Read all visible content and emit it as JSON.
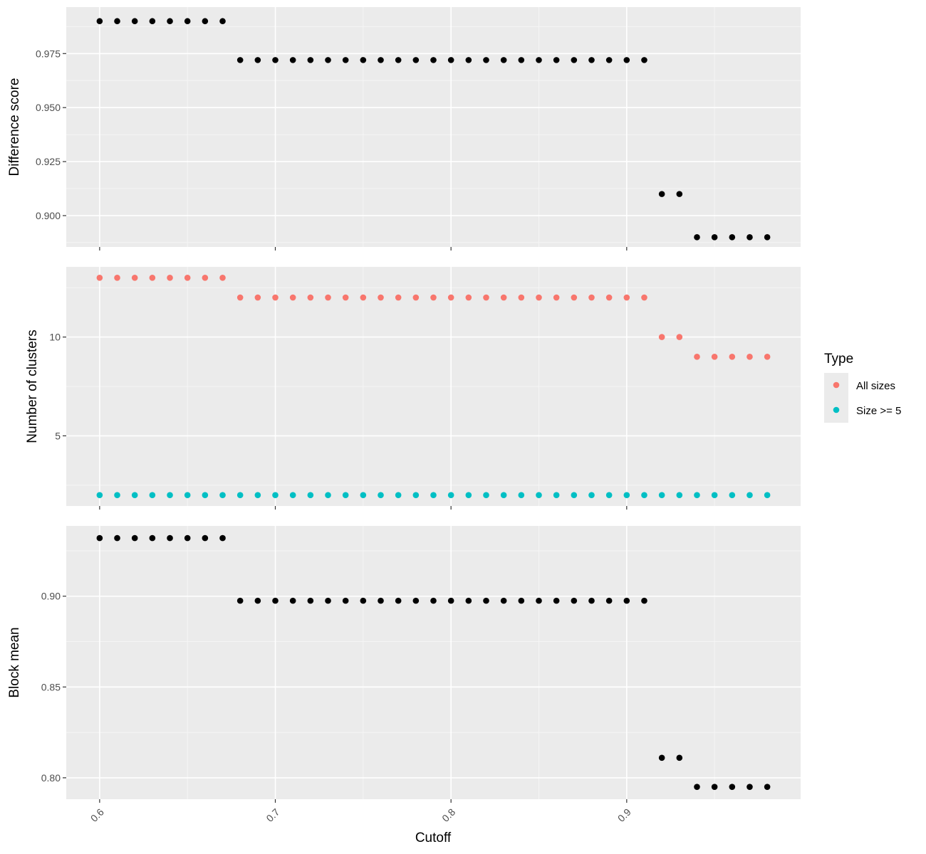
{
  "colors": {
    "panel_bg": "#EBEBEB",
    "grid_major": "#FFFFFF",
    "grid_minor": "#F5F5F5",
    "tick": "#333333",
    "black_points": "#000000",
    "all_sizes": "#F8766D",
    "size_ge5": "#00BFC4"
  },
  "xlabel": "Cutoff",
  "legend": {
    "title": "Type",
    "items": [
      {
        "label": "All sizes",
        "color": "#F8766D"
      },
      {
        "label": "Size >= 5",
        "color": "#00BFC4"
      }
    ]
  },
  "chart_data": [
    {
      "type": "scatter",
      "ylabel": "Difference score",
      "xlim": [
        0.581,
        0.999
      ],
      "ylim": [
        0.8855,
        0.9965
      ],
      "xticks": [
        0.6,
        0.7,
        0.8,
        0.9
      ],
      "xtick_labels": [
        "0.6",
        "0.7",
        "0.8",
        "0.9"
      ],
      "yticks": [
        0.9,
        0.925,
        0.95,
        0.975
      ],
      "ytick_labels": [
        "0.900",
        "0.925",
        "0.950",
        "0.975"
      ],
      "show_xtick_labels": false,
      "grid": true,
      "series": [
        {
          "color": "#000000",
          "x": [
            0.6,
            0.61,
            0.62,
            0.63,
            0.64,
            0.65,
            0.66,
            0.67,
            0.68,
            0.69,
            0.7,
            0.71,
            0.72,
            0.73,
            0.74,
            0.75,
            0.76,
            0.77,
            0.78,
            0.79,
            0.8,
            0.81,
            0.82,
            0.83,
            0.84,
            0.85,
            0.86,
            0.87,
            0.88,
            0.89,
            0.9,
            0.91,
            0.92,
            0.93,
            0.94,
            0.95,
            0.96,
            0.97,
            0.98
          ],
          "y": [
            0.99,
            0.99,
            0.99,
            0.99,
            0.99,
            0.99,
            0.99,
            0.99,
            0.972,
            0.972,
            0.972,
            0.972,
            0.972,
            0.972,
            0.972,
            0.972,
            0.972,
            0.972,
            0.972,
            0.972,
            0.972,
            0.972,
            0.972,
            0.972,
            0.972,
            0.972,
            0.972,
            0.972,
            0.972,
            0.972,
            0.972,
            0.972,
            0.91,
            0.91,
            0.89,
            0.89,
            0.89,
            0.89,
            0.89
          ]
        }
      ]
    },
    {
      "type": "scatter",
      "ylabel": "Number of clusters",
      "xlim": [
        0.581,
        0.999
      ],
      "ylim": [
        1.45,
        13.55
      ],
      "xticks": [
        0.6,
        0.7,
        0.8,
        0.9
      ],
      "xtick_labels": [
        "0.6",
        "0.7",
        "0.8",
        "0.9"
      ],
      "yticks": [
        5,
        10
      ],
      "ytick_labels": [
        "5",
        "10"
      ],
      "show_xtick_labels": false,
      "grid": true,
      "series": [
        {
          "name": "All sizes",
          "color": "#F8766D",
          "x": [
            0.6,
            0.61,
            0.62,
            0.63,
            0.64,
            0.65,
            0.66,
            0.67,
            0.68,
            0.69,
            0.7,
            0.71,
            0.72,
            0.73,
            0.74,
            0.75,
            0.76,
            0.77,
            0.78,
            0.79,
            0.8,
            0.81,
            0.82,
            0.83,
            0.84,
            0.85,
            0.86,
            0.87,
            0.88,
            0.89,
            0.9,
            0.91,
            0.92,
            0.93,
            0.94,
            0.95,
            0.96,
            0.97,
            0.98
          ],
          "y": [
            13,
            13,
            13,
            13,
            13,
            13,
            13,
            13,
            12,
            12,
            12,
            12,
            12,
            12,
            12,
            12,
            12,
            12,
            12,
            12,
            12,
            12,
            12,
            12,
            12,
            12,
            12,
            12,
            12,
            12,
            12,
            12,
            10,
            10,
            9,
            9,
            9,
            9,
            9
          ]
        },
        {
          "name": "Size >= 5",
          "color": "#00BFC4",
          "x": [
            0.6,
            0.61,
            0.62,
            0.63,
            0.64,
            0.65,
            0.66,
            0.67,
            0.68,
            0.69,
            0.7,
            0.71,
            0.72,
            0.73,
            0.74,
            0.75,
            0.76,
            0.77,
            0.78,
            0.79,
            0.8,
            0.81,
            0.82,
            0.83,
            0.84,
            0.85,
            0.86,
            0.87,
            0.88,
            0.89,
            0.9,
            0.91,
            0.92,
            0.93,
            0.94,
            0.95,
            0.96,
            0.97,
            0.98
          ],
          "y": [
            2,
            2,
            2,
            2,
            2,
            2,
            2,
            2,
            2,
            2,
            2,
            2,
            2,
            2,
            2,
            2,
            2,
            2,
            2,
            2,
            2,
            2,
            2,
            2,
            2,
            2,
            2,
            2,
            2,
            2,
            2,
            2,
            2,
            2,
            2,
            2,
            2,
            2,
            2
          ]
        }
      ]
    },
    {
      "type": "scatter",
      "ylabel": "Block mean",
      "xlim": [
        0.581,
        0.999
      ],
      "ylim": [
        0.7882,
        0.9387
      ],
      "xticks": [
        0.6,
        0.7,
        0.8,
        0.9
      ],
      "xtick_labels": [
        "0.6",
        "0.7",
        "0.8",
        "0.9"
      ],
      "yticks": [
        0.8,
        0.85,
        0.9
      ],
      "ytick_labels": [
        "0.80",
        "0.85",
        "0.90"
      ],
      "show_xtick_labels": true,
      "grid": true,
      "series": [
        {
          "color": "#000000",
          "x": [
            0.6,
            0.61,
            0.62,
            0.63,
            0.64,
            0.65,
            0.66,
            0.67,
            0.68,
            0.69,
            0.7,
            0.71,
            0.72,
            0.73,
            0.74,
            0.75,
            0.76,
            0.77,
            0.78,
            0.79,
            0.8,
            0.81,
            0.82,
            0.83,
            0.84,
            0.85,
            0.86,
            0.87,
            0.88,
            0.89,
            0.9,
            0.91,
            0.92,
            0.93,
            0.94,
            0.95,
            0.96,
            0.97,
            0.98
          ],
          "y": [
            0.932,
            0.932,
            0.932,
            0.932,
            0.932,
            0.932,
            0.932,
            0.932,
            0.8975,
            0.8975,
            0.8975,
            0.8975,
            0.8975,
            0.8975,
            0.8975,
            0.8975,
            0.8975,
            0.8975,
            0.8975,
            0.8975,
            0.8975,
            0.8975,
            0.8975,
            0.8975,
            0.8975,
            0.8975,
            0.8975,
            0.8975,
            0.8975,
            0.8975,
            0.8975,
            0.8975,
            0.811,
            0.811,
            0.795,
            0.795,
            0.795,
            0.795,
            0.795
          ]
        }
      ]
    }
  ]
}
